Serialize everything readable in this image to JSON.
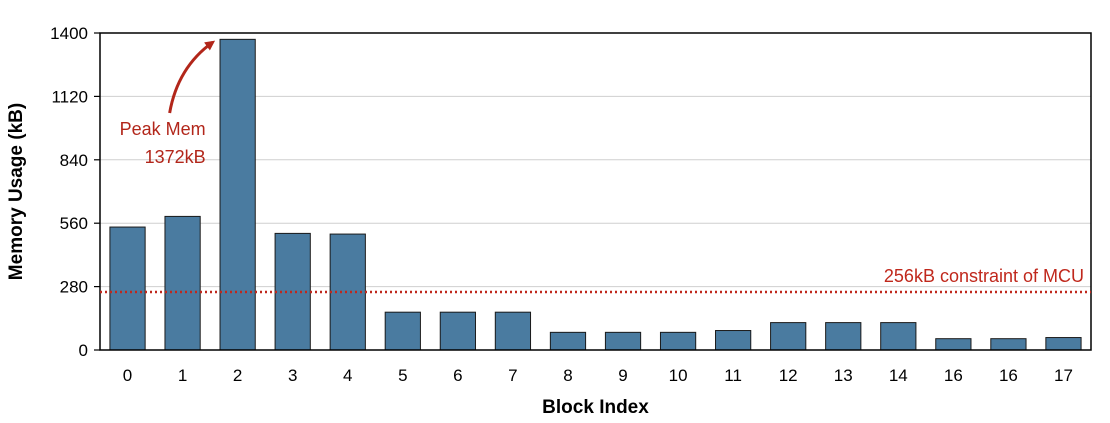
{
  "chart_data": {
    "type": "bar",
    "title": "",
    "xlabel": "Block Index",
    "ylabel": "Memory Usage (kB)",
    "categories": [
      "0",
      "1",
      "2",
      "3",
      "4",
      "5",
      "6",
      "7",
      "8",
      "9",
      "10",
      "11",
      "12",
      "13",
      "14",
      "16",
      "16",
      "17"
    ],
    "values": [
      543,
      590,
      1372,
      515,
      512,
      167,
      167,
      167,
      78,
      78,
      78,
      86,
      121,
      121,
      121,
      50,
      50,
      55
    ],
    "ylim": [
      0,
      1400
    ],
    "yticks": [
      "0",
      "280",
      "560",
      "840",
      "1120",
      "1400"
    ],
    "grid": true,
    "bar_color": "#4a7ba0",
    "reference_line": {
      "value": 256,
      "label": "256kB constraint of MCU",
      "color": "#c0281c",
      "style": "dotted"
    },
    "annotation": {
      "line1": "Peak Mem",
      "line2": "1372kB",
      "target_index": 2,
      "color": "#b2261a"
    }
  }
}
